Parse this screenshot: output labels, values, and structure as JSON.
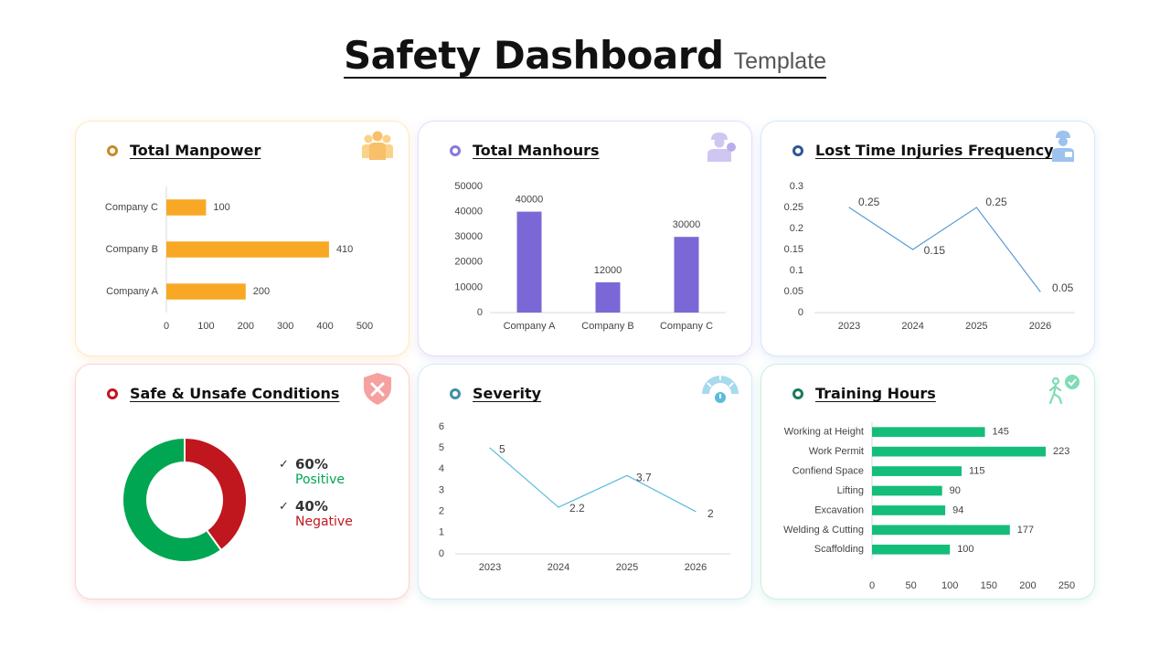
{
  "page": {
    "title": "Safety Dashboard",
    "subtitle": "Template"
  },
  "colors": {
    "manpower": "#f9a825",
    "manhours": "#7b68d6",
    "ltif": "#5b9bd5",
    "positive": "#00a651",
    "negative": "#c0161e",
    "severity": "#5bbcdc",
    "training": "#14bd7a"
  },
  "icons": {
    "manpower": "people-group-icon",
    "manhours": "worker-person-icon",
    "ltif": "injured-worker-icon",
    "conditions": "shield-x-icon",
    "severity": "gauge-icon",
    "training": "walking-person-clock-icon"
  },
  "cards": {
    "manpower": {
      "title": "Total Manpower"
    },
    "manhours": {
      "title": "Total Manhours"
    },
    "ltif": {
      "title": "Lost Time Injuries Frequency"
    },
    "conditions": {
      "title": "Safe & Unsafe Conditions"
    },
    "severity": {
      "title": "Severity"
    },
    "training": {
      "title": "Training Hours"
    }
  },
  "chart_data": [
    {
      "id": "manpower",
      "type": "bar",
      "orientation": "horizontal",
      "title": "Total Manpower",
      "categories": [
        "Company C",
        "Company B",
        "Company A"
      ],
      "values": [
        100,
        410,
        200
      ],
      "xlim": [
        0,
        500
      ],
      "xticks": [
        0,
        100,
        200,
        300,
        400,
        500
      ],
      "data_labels": true
    },
    {
      "id": "manhours",
      "type": "bar",
      "orientation": "vertical",
      "title": "Total Manhours",
      "categories": [
        "Company A",
        "Company B",
        "Company C"
      ],
      "values": [
        40000,
        12000,
        30000
      ],
      "ylim": [
        0,
        50000
      ],
      "yticks": [
        0,
        10000,
        20000,
        30000,
        40000,
        50000
      ],
      "data_labels": true
    },
    {
      "id": "ltif",
      "type": "line",
      "title": "Lost Time Injuries Frequency",
      "categories": [
        "2023",
        "2024",
        "2025",
        "2026"
      ],
      "values": [
        0.25,
        0.15,
        0.25,
        0.05
      ],
      "labels": [
        "0.25",
        "0.15",
        "0.25",
        "0.05"
      ],
      "ylim": [
        0,
        0.3
      ],
      "yticks": [
        "0",
        "0.05",
        "0.1",
        "0.15",
        "0.2",
        "0.25",
        "0.3"
      ],
      "data_labels": true
    },
    {
      "id": "conditions",
      "type": "pie",
      "title": "Safe & Unsafe Conditions",
      "donut": true,
      "slices": [
        {
          "pct_label": "60%",
          "label": "Positive",
          "value": 60
        },
        {
          "pct_label": "40%",
          "label": "Negative",
          "value": 40
        }
      ],
      "legend": "right"
    },
    {
      "id": "severity",
      "type": "line",
      "title": "Severity",
      "categories": [
        "2023",
        "2024",
        "2025",
        "2026"
      ],
      "values": [
        5,
        2.2,
        3.7,
        2
      ],
      "labels": [
        "5",
        "2.2",
        "3.7",
        "2"
      ],
      "ylim": [
        0,
        6
      ],
      "yticks": [
        "0",
        "1",
        "2",
        "3",
        "4",
        "5",
        "6"
      ],
      "data_labels": true
    },
    {
      "id": "training",
      "type": "bar",
      "orientation": "horizontal",
      "title": "Training Hours",
      "categories": [
        "Working at Height",
        "Work Permit",
        "Confiend Space",
        "Lifting",
        "Excavation",
        "Welding & Cutting",
        "Scaffolding"
      ],
      "values": [
        145,
        223,
        115,
        90,
        94,
        177,
        100
      ],
      "xlim": [
        0,
        250
      ],
      "xticks": [
        0,
        50,
        100,
        150,
        200,
        250
      ],
      "data_labels": true
    }
  ]
}
